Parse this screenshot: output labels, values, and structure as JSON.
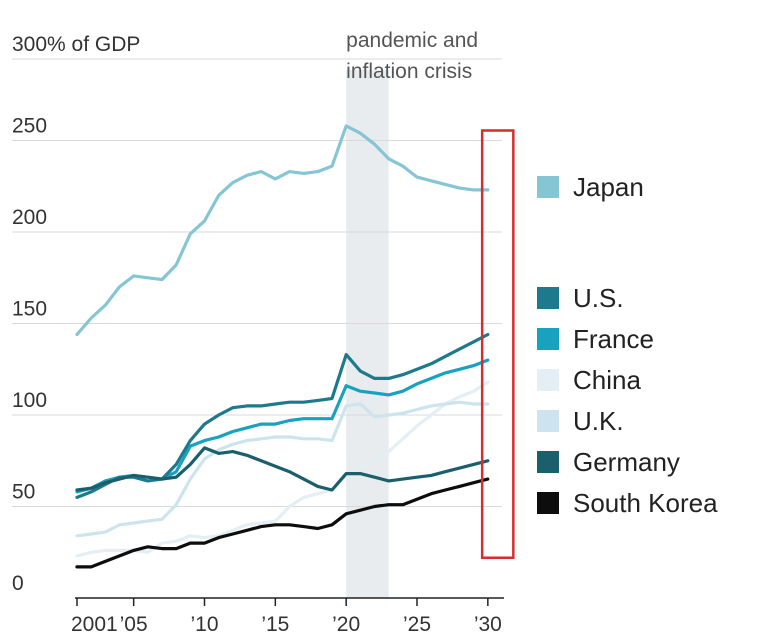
{
  "chart_data": {
    "type": "line",
    "unit_label": "300% of GDP",
    "band": {
      "label_lines": [
        "pandemic and",
        "inflation crisis"
      ],
      "x_start": 2020,
      "x_end": 2023,
      "color": "#e9ecef"
    },
    "highlight_box": {
      "x_start": 2029.6,
      "x_end": 2031.8,
      "y_bottom": 22,
      "y_top": 250,
      "color": "#d32f2f"
    },
    "ylim": [
      0,
      300
    ],
    "xlim": [
      2001,
      2031
    ],
    "y_ticks": [
      {
        "value": 0,
        "label": "0"
      },
      {
        "value": 50,
        "label": "50"
      },
      {
        "value": 100,
        "label": "100"
      },
      {
        "value": 150,
        "label": "150"
      },
      {
        "value": 200,
        "label": "200"
      },
      {
        "value": 250,
        "label": "250"
      }
    ],
    "x_ticks": [
      {
        "value": 2001,
        "label": "2001"
      },
      {
        "value": 2005,
        "label": "’05"
      },
      {
        "value": 2010,
        "label": "’10"
      },
      {
        "value": 2015,
        "label": "’15"
      },
      {
        "value": 2020,
        "label": "’20"
      },
      {
        "value": 2025,
        "label": "’25"
      },
      {
        "value": 2030,
        "label": "’30"
      }
    ],
    "x": [
      2001,
      2002,
      2003,
      2004,
      2005,
      2006,
      2007,
      2008,
      2009,
      2010,
      2011,
      2012,
      2013,
      2014,
      2015,
      2016,
      2017,
      2018,
      2019,
      2020,
      2021,
      2022,
      2023,
      2024,
      2025,
      2026,
      2027,
      2028,
      2029,
      2030
    ],
    "series": [
      {
        "name": "Japan",
        "color": "#86c5d4",
        "values": [
          144,
          153,
          160,
          170,
          176,
          175,
          174,
          182,
          199,
          206,
          220,
          227,
          231,
          233,
          229,
          233,
          232,
          233,
          236,
          258,
          254,
          248,
          240,
          236,
          230,
          228,
          226,
          224,
          223,
          223
        ]
      },
      {
        "name": "U.S.",
        "color": "#1d7a8c",
        "values": [
          55,
          58,
          62,
          66,
          66,
          64,
          65,
          73,
          86,
          95,
          100,
          104,
          105,
          105,
          106,
          107,
          107,
          108,
          109,
          133,
          124,
          120,
          120,
          122,
          125,
          128,
          132,
          136,
          140,
          144
        ]
      },
      {
        "name": "France",
        "color": "#18a2bf",
        "values": [
          58,
          60,
          64,
          66,
          67,
          66,
          65,
          69,
          83,
          86,
          88,
          91,
          93,
          95,
          95,
          97,
          98,
          98,
          98,
          116,
          113,
          112,
          111,
          113,
          117,
          120,
          123,
          125,
          127,
          130
        ]
      },
      {
        "name": "China",
        "color": "#e3eff5",
        "values": [
          23,
          25,
          26,
          26,
          26,
          25,
          30,
          31,
          34,
          33,
          34,
          37,
          40,
          41,
          42,
          50,
          55,
          57,
          59,
          67,
          72,
          76,
          80,
          87,
          94,
          100,
          106,
          110,
          113,
          118
        ]
      },
      {
        "name": "U.K.",
        "color": "#cde4ee",
        "values": [
          34,
          35,
          36,
          40,
          41,
          42,
          43,
          51,
          65,
          76,
          81,
          84,
          86,
          87,
          88,
          88,
          87,
          87,
          86,
          105,
          106,
          99,
          100,
          101,
          103,
          105,
          106,
          107,
          106,
          106
        ]
      },
      {
        "name": "Germany",
        "color": "#1a5f6b",
        "values": [
          59,
          60,
          63,
          65,
          67,
          66,
          65,
          66,
          73,
          82,
          79,
          80,
          78,
          75,
          72,
          69,
          65,
          61,
          59,
          68,
          68,
          66,
          64,
          65,
          66,
          67,
          69,
          71,
          73,
          75
        ]
      },
      {
        "name": "South Korea",
        "color": "#0d0d0d",
        "values": [
          17,
          17,
          20,
          23,
          26,
          28,
          27,
          27,
          30,
          30,
          33,
          35,
          37,
          39,
          40,
          40,
          39,
          38,
          40,
          46,
          48,
          50,
          51,
          51,
          54,
          57,
          59,
          61,
          63,
          65
        ]
      }
    ],
    "legend": {
      "placement": "right",
      "entries": [
        {
          "label": "Japan",
          "color": "#86c5d4",
          "group": 0
        },
        {
          "label": "U.S.",
          "color": "#1d7a8c",
          "group": 1
        },
        {
          "label": "France",
          "color": "#18a2bf",
          "group": 1
        },
        {
          "label": "China",
          "color": "#e3eff5",
          "group": 1
        },
        {
          "label": "U.K.",
          "color": "#cde4ee",
          "group": 1
        },
        {
          "label": "Germany",
          "color": "#1a5f6b",
          "group": 1
        },
        {
          "label": "South Korea",
          "color": "#0d0d0d",
          "group": 1
        }
      ]
    },
    "grid": true
  }
}
